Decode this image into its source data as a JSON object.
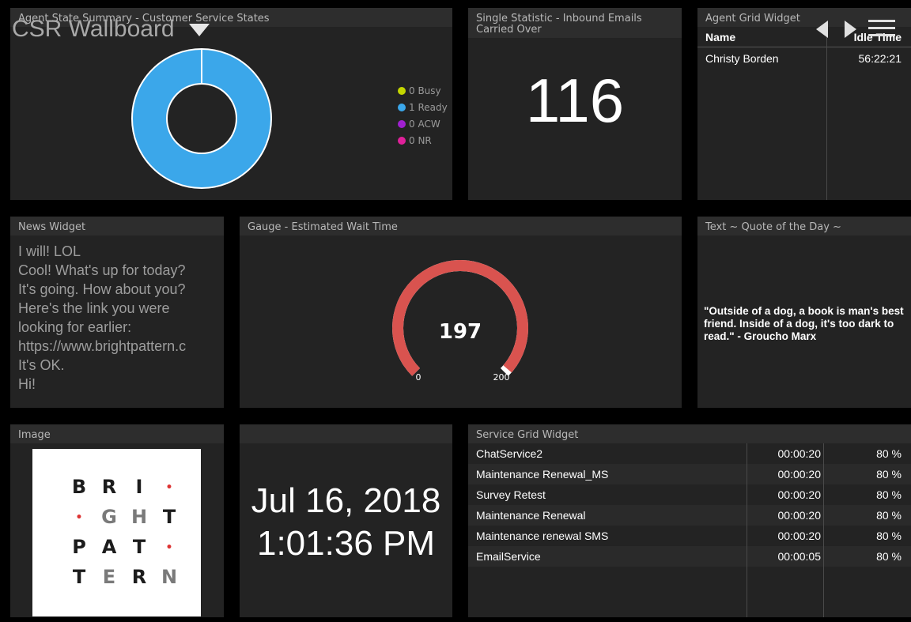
{
  "header": {
    "title": "CSR Wallboard",
    "icons": [
      "chevron-down-icon",
      "prev-icon",
      "next-icon",
      "menu-icon"
    ]
  },
  "agent_state": {
    "title": "Agent State Summary - Customer Service States",
    "legend": [
      {
        "label": "0 Busy",
        "color": "#c4d600"
      },
      {
        "label": "1 Ready",
        "color": "#3ba7ea"
      },
      {
        "label": "0 ACW",
        "color": "#a020d0"
      },
      {
        "label": "0 NR",
        "color": "#e0209a"
      }
    ],
    "donut_color": "#3ba7ea"
  },
  "single_stat": {
    "title": "Single Statistic - Inbound Emails Carried Over",
    "value": "116"
  },
  "agent_grid": {
    "title": "Agent Grid Widget",
    "columns": [
      "Name",
      "Idle Time"
    ],
    "rows": [
      {
        "name": "Christy Borden",
        "idle": "56:22:21"
      }
    ]
  },
  "news": {
    "title": "News Widget",
    "lines": [
      "I will! LOL",
      "Cool! What's up for today?",
      "It's going. How about you?",
      "Here's the link you were",
      "looking for earlier:",
      "https://www.brightpattern.c",
      "It's OK.",
      "Hi!"
    ]
  },
  "gauge": {
    "title": "Gauge - Estimated Wait Time",
    "value": 197,
    "value_label": "197",
    "min": 0,
    "max": 200,
    "min_label": "0",
    "max_label": "200",
    "color": "#d9534f"
  },
  "quote": {
    "title": "Text ~ Quote of the Day ~",
    "text": "\"Outside of a dog, a book is man's best friend. Inside of a dog, it's too dark to read.\" - Groucho Marx"
  },
  "image": {
    "title": "Image",
    "logo_rows": [
      [
        "B",
        "R",
        "I",
        "•"
      ],
      [
        "•",
        "G",
        "H",
        "T"
      ],
      [
        "P",
        "A",
        "T",
        "•"
      ],
      [
        "T",
        "E",
        "R",
        "N"
      ]
    ]
  },
  "clock": {
    "date": "Jul 16, 2018",
    "time": "1:01:36 PM"
  },
  "service_grid": {
    "title": "Service Grid Widget",
    "rows": [
      {
        "name": "ChatService2",
        "time": "00:00:20",
        "pct": "80 %"
      },
      {
        "name": "Maintenance Renewal_MS",
        "time": "00:00:20",
        "pct": "80 %"
      },
      {
        "name": "Survey Retest",
        "time": "00:00:20",
        "pct": "80 %"
      },
      {
        "name": "Maintenance Renewal",
        "time": "00:00:20",
        "pct": "80 %"
      },
      {
        "name": "Maintenance renewal SMS",
        "time": "00:00:20",
        "pct": "80 %"
      },
      {
        "name": "EmailService",
        "time": "00:00:05",
        "pct": "80 %"
      }
    ]
  }
}
